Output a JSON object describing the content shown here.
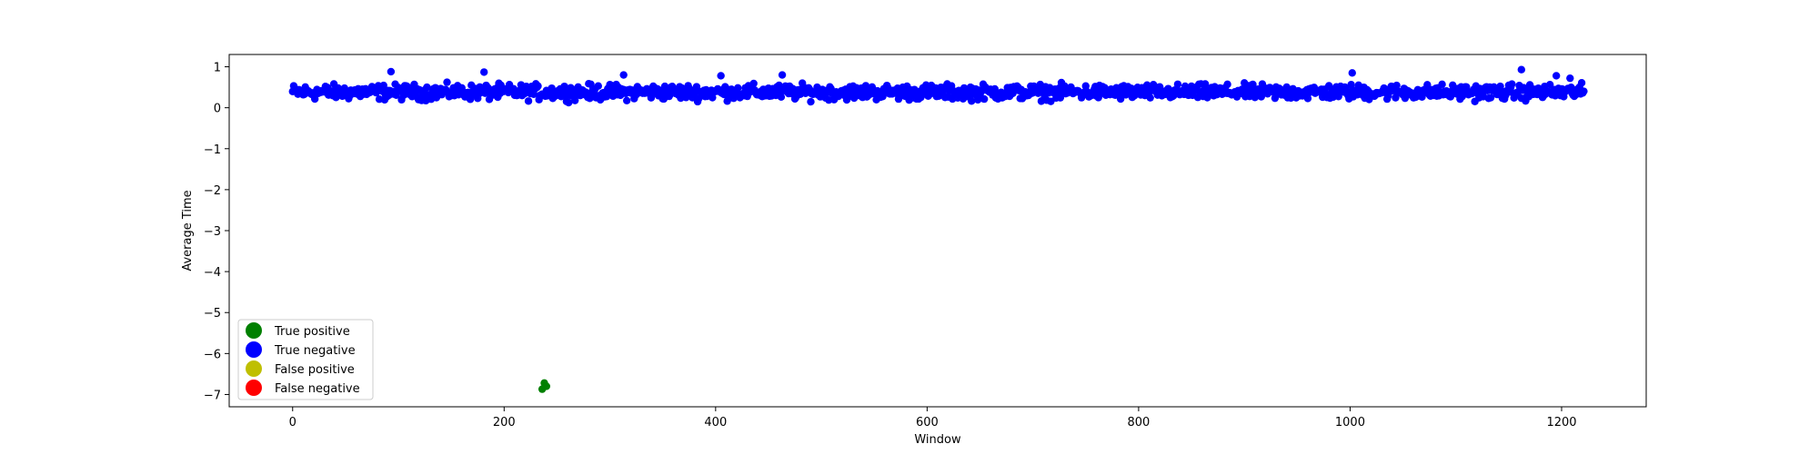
{
  "chart_data": {
    "type": "scatter",
    "title": "",
    "xlabel": "Window",
    "ylabel": "Average Time",
    "xlim": [
      -60,
      1280
    ],
    "ylim": [
      -7.3,
      1.3
    ],
    "xticks": [
      0,
      200,
      400,
      600,
      800,
      1000,
      1200
    ],
    "yticks": [
      1,
      0,
      -1,
      -2,
      -3,
      -4,
      -5,
      -6,
      -7
    ],
    "grid": false,
    "legend_position": "lower-left",
    "series": [
      {
        "name": "True positive",
        "color": "#008000",
        "points": [
          [
            236,
            -6.87
          ],
          [
            238,
            -6.72
          ],
          [
            240,
            -6.8
          ]
        ]
      },
      {
        "name": "True negative",
        "color": "#0000ff",
        "n_points": 1222,
        "y_baseline": 0.38,
        "y_spread": 0.18,
        "outliers": [
          [
            93,
            0.88
          ],
          [
            181,
            0.87
          ],
          [
            313,
            0.8
          ],
          [
            405,
            0.78
          ],
          [
            463,
            0.8
          ],
          [
            1002,
            0.85
          ],
          [
            1162,
            0.93
          ],
          [
            1195,
            0.78
          ],
          [
            1208,
            0.72
          ]
        ]
      },
      {
        "name": "False positive",
        "color": "#bfbf00",
        "points": []
      },
      {
        "name": "False negative",
        "color": "#ff0000",
        "points": []
      }
    ]
  }
}
